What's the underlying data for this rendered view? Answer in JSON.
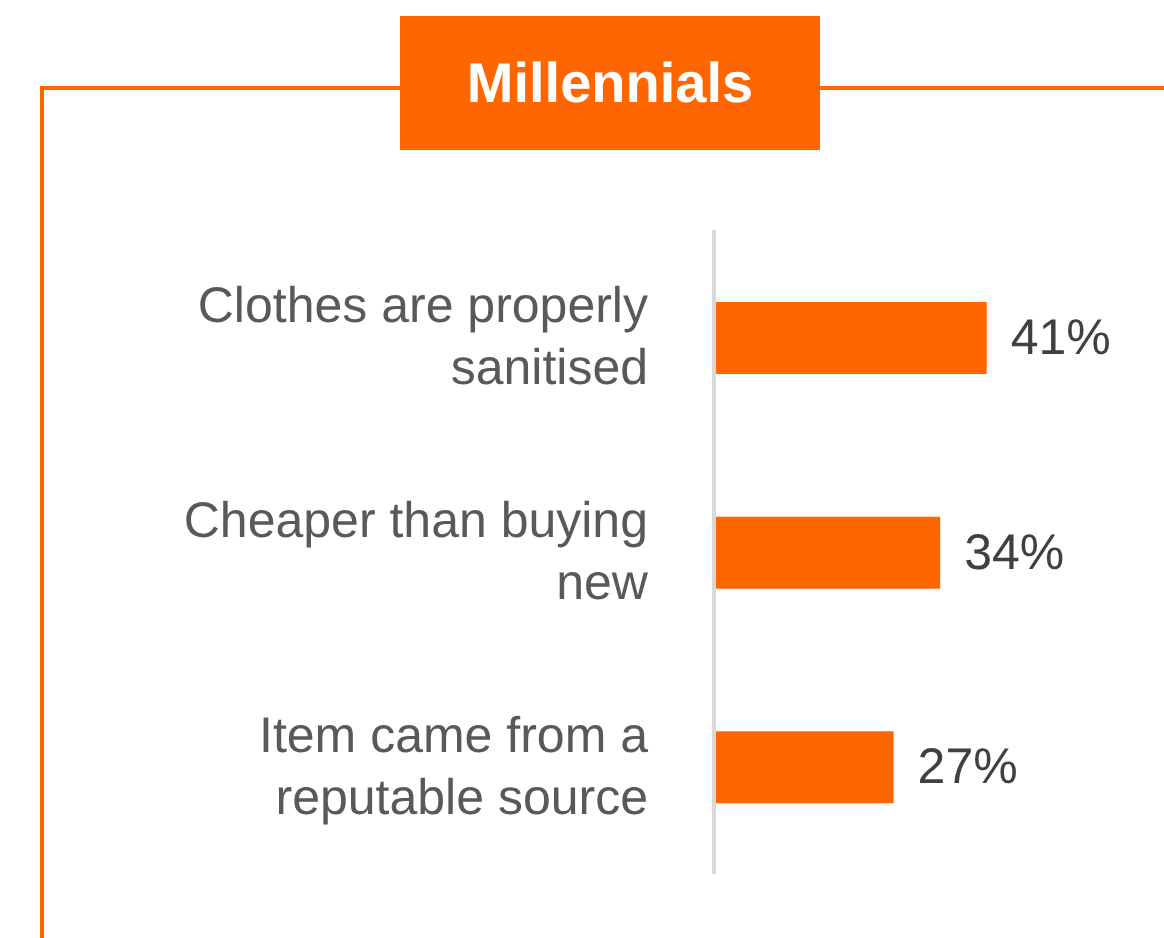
{
  "chart_data": {
    "type": "bar",
    "title": "Millennials",
    "orientation": "horizontal",
    "categories": [
      "Clothes are properly sanitised",
      "Cheaper than buying new",
      "Item came from a reputable source"
    ],
    "values": [
      41,
      34,
      27
    ],
    "value_labels": [
      "41%",
      "34%",
      "27%"
    ],
    "color": "#ff6600"
  }
}
